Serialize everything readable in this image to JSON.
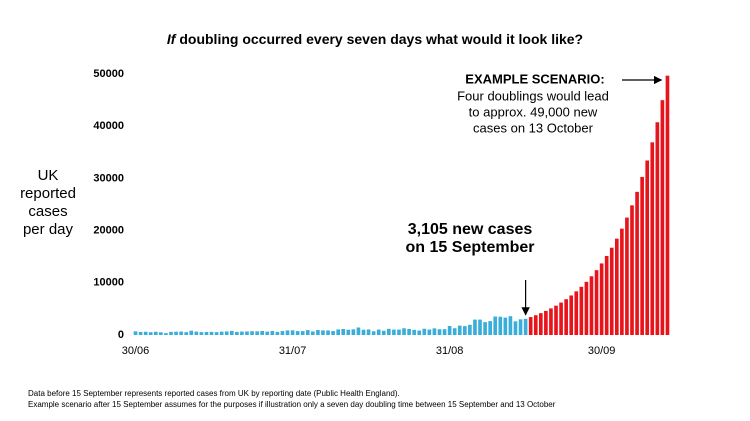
{
  "chart_data": {
    "type": "bar",
    "title_emphasis": "If",
    "title": "doubling occurred every seven days what would it look like?",
    "y_label": [
      "UK",
      "reported",
      "cases",
      "per day"
    ],
    "annotation_current": [
      "3,105 new cases",
      "on 15 September"
    ],
    "annotation_scenario": {
      "heading": "EXAMPLE SCENARIO:",
      "lines": [
        "Four doublings would lead",
        "to approx. 49,000 new",
        "cases on 13 October"
      ]
    },
    "footnotes": [
      "Data before 15 September represents reported cases from UK by reporting date (Public Health England).",
      "Example scenario after 15 September assumes for the purposes if illustration only a seven day doubling time between 15 September and 13 October"
    ],
    "categories": [
      "30/06",
      null,
      null,
      null,
      null,
      null,
      null,
      null,
      null,
      null,
      null,
      null,
      null,
      null,
      null,
      null,
      null,
      null,
      null,
      null,
      null,
      null,
      null,
      null,
      null,
      null,
      null,
      null,
      null,
      null,
      null,
      "31/07",
      null,
      null,
      null,
      null,
      null,
      null,
      null,
      null,
      null,
      null,
      null,
      null,
      null,
      null,
      null,
      null,
      null,
      null,
      null,
      null,
      null,
      null,
      null,
      null,
      null,
      null,
      null,
      null,
      null,
      null,
      "31/08",
      null,
      null,
      null,
      null,
      null,
      null,
      null,
      null,
      null,
      null,
      null,
      null,
      null,
      null,
      null,
      null,
      null,
      null,
      null,
      null,
      null,
      null,
      null,
      null,
      null,
      null,
      null,
      null,
      null,
      "30/09",
      null,
      null,
      null,
      null,
      null,
      null,
      null,
      null,
      null,
      null,
      null,
      null,
      null
    ],
    "series": [
      {
        "color": "#3aaed8",
        "values": [
          700,
          580,
          620,
          540,
          620,
          520,
          350,
          600,
          630,
          650,
          540,
          820,
          650,
          550,
          580,
          600,
          550,
          640,
          680,
          780,
          600,
          660,
          680,
          720,
          700,
          770,
          650,
          770,
          600,
          760,
          880,
          900,
          750,
          740,
          940,
          670,
          950,
          880,
          870,
          750,
          1060,
          1150,
          1010,
          1090,
          1440,
          1010,
          1060,
          720,
          1040,
          810,
          1180,
          1030,
          1030,
          1290,
          1160,
          990,
          850,
          1200,
          1050,
          1270,
          1100,
          1110,
          1720,
          1300,
          1800,
          1700,
          1950,
          2950,
          2950,
          2460,
          2660,
          3540,
          3500,
          3330,
          3600,
          2620,
          3000,
          3105,
          null,
          null,
          null,
          null,
          null,
          null,
          null,
          null,
          null,
          null,
          null,
          null,
          null,
          null,
          null,
          null,
          null,
          null,
          null,
          null,
          null,
          null,
          null,
          null,
          null,
          null,
          null,
          null
        ]
      },
      {
        "color": "#e8141b",
        "values": [
          null,
          null,
          null,
          null,
          null,
          null,
          null,
          null,
          null,
          null,
          null,
          null,
          null,
          null,
          null,
          null,
          null,
          null,
          null,
          null,
          null,
          null,
          null,
          null,
          null,
          null,
          null,
          null,
          null,
          null,
          null,
          null,
          null,
          null,
          null,
          null,
          null,
          null,
          null,
          null,
          null,
          null,
          null,
          null,
          null,
          null,
          null,
          null,
          null,
          null,
          null,
          null,
          null,
          null,
          null,
          null,
          null,
          null,
          null,
          null,
          null,
          null,
          null,
          null,
          null,
          null,
          null,
          null,
          null,
          null,
          null,
          null,
          null,
          null,
          null,
          null,
          null,
          null,
          3428,
          3785,
          4179,
          4614,
          5094,
          5625,
          6210,
          6856,
          7570,
          8358,
          9228,
          10189,
          11249,
          12420,
          13713,
          15140,
          16716,
          18456,
          20377,
          22498,
          24840,
          27425,
          30280,
          33432,
          36911,
          40754,
          44995,
          49680
        ]
      }
    ],
    "ylim": [
      0,
      50000
    ],
    "yticks": [
      0,
      10000,
      20000,
      30000,
      40000,
      50000
    ],
    "grid": false
  }
}
